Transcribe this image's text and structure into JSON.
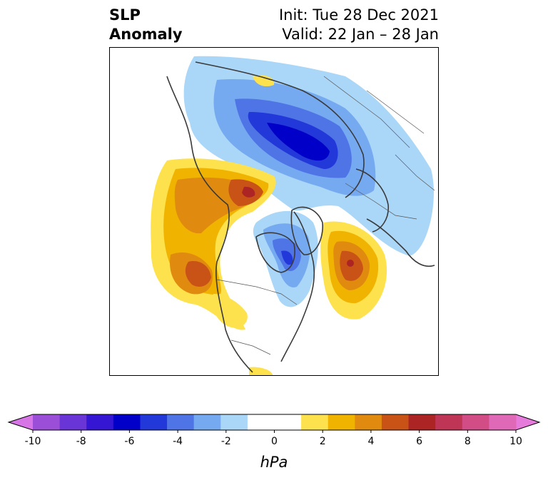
{
  "title": {
    "left_line1": "SLP",
    "left_line2": "Anomaly",
    "right_line1": "Init: Tue 28 Dec 2021",
    "right_line2": "Valid: 22 Jan – 28 Jan"
  },
  "colorbar": {
    "unit": "hPa",
    "tick_labels": [
      "-10",
      "-8",
      "-6",
      "-4",
      "-2",
      "0",
      "2",
      "4",
      "6",
      "8",
      "10"
    ],
    "colors": [
      "#9b4fd9",
      "#6a35d6",
      "#3516d2",
      "#0000c8",
      "#2238d8",
      "#4f74e6",
      "#76aaf0",
      "#aad6f8",
      "#ffffff",
      "#ffffff",
      "#fde24e",
      "#f0b400",
      "#e08a10",
      "#c95216",
      "#ad2424",
      "#bf3556",
      "#d24c85",
      "#df69b6"
    ],
    "extend_low_color": "#d774e6",
    "extend_high_color": "#e77bdb"
  }
}
